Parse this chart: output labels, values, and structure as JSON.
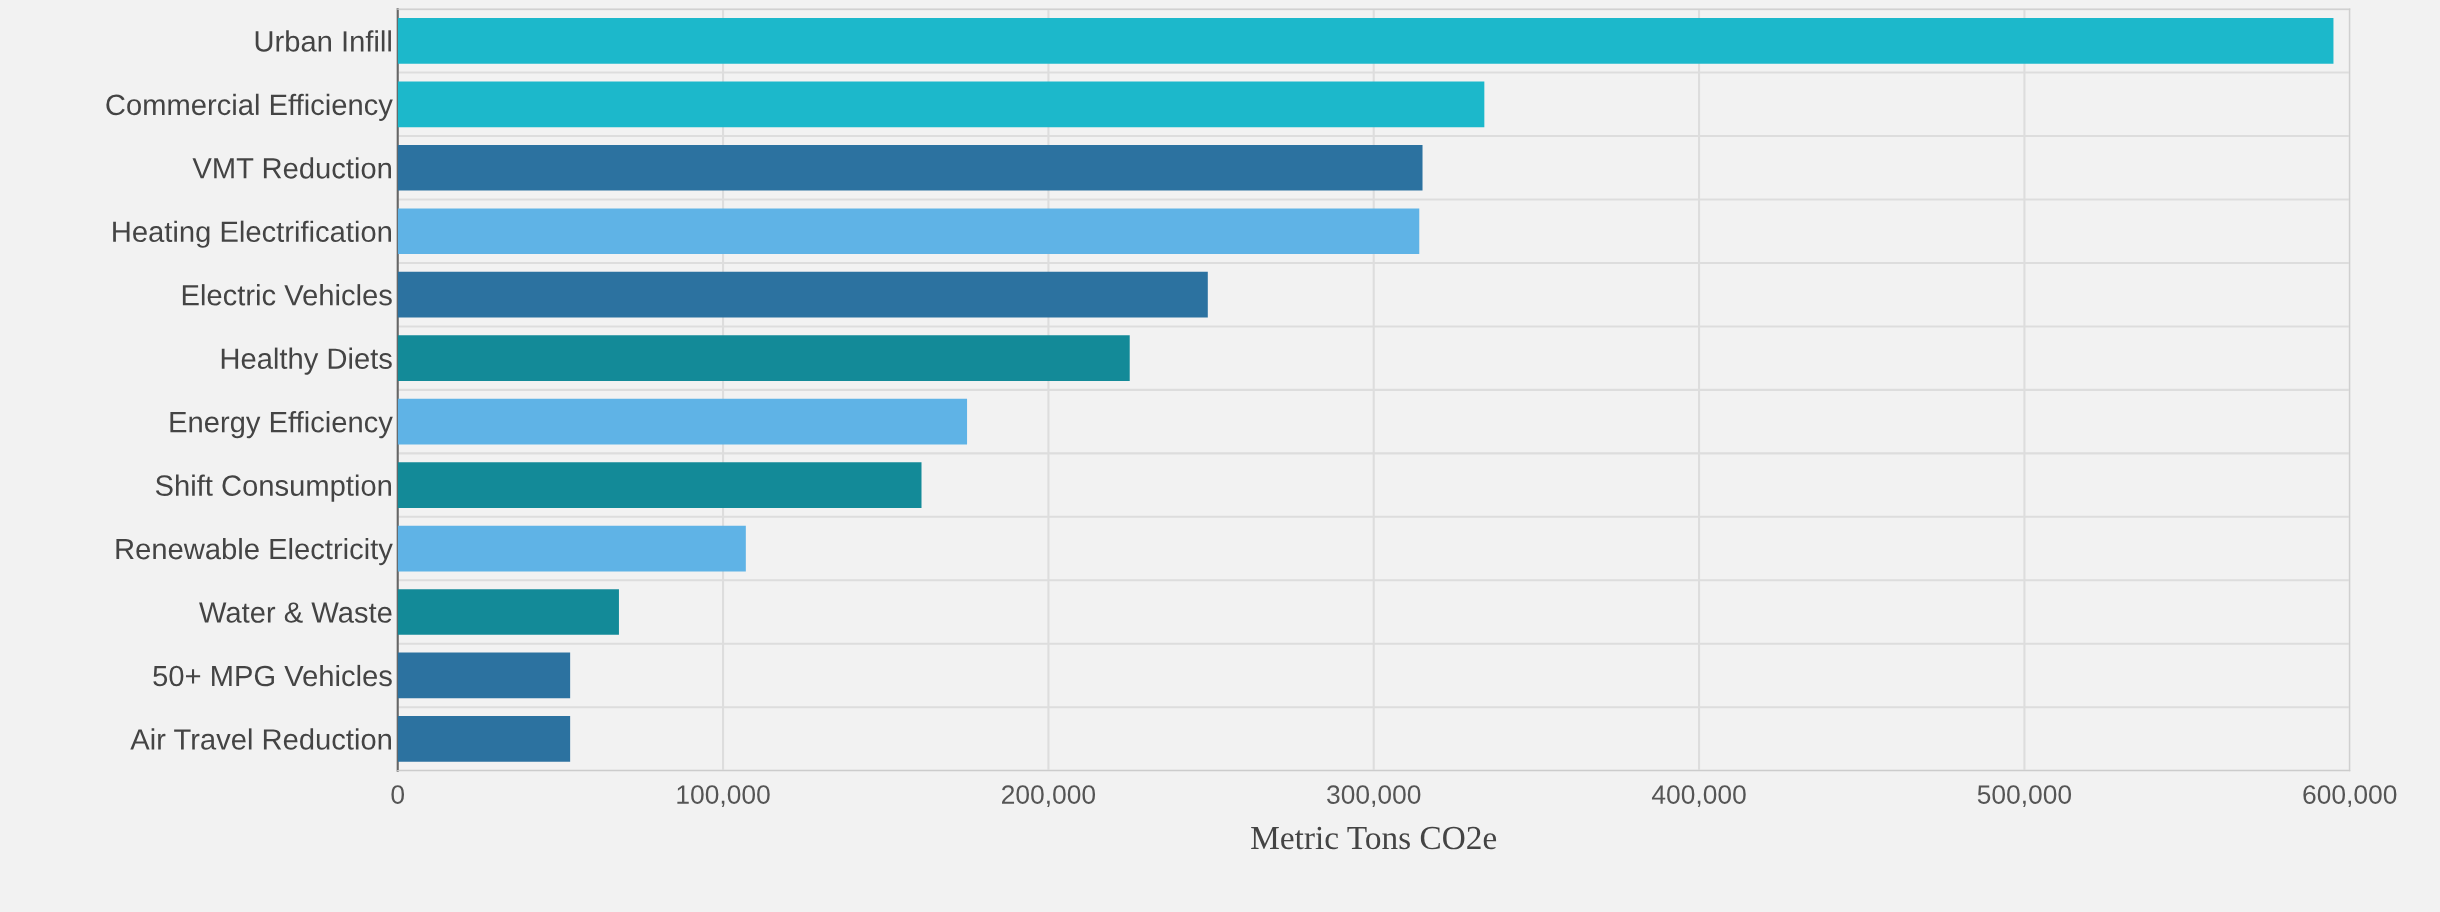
{
  "chart_data": {
    "type": "bar",
    "orientation": "horizontal",
    "xlabel": "Metric Tons CO2e",
    "categories": [
      "Urban Infill",
      "Commercial Efficiency",
      "VMT Reduction",
      "Heating Electrification",
      "Electric Vehicles",
      "Healthy Diets",
      "Energy Efficiency",
      "Shift Consumption",
      "Renewable Electricity",
      "Water & Waste",
      "50+ MPG Vehicles",
      "Air Travel Reduction"
    ],
    "values": [
      595000,
      334000,
      315000,
      314000,
      249000,
      225000,
      175000,
      161000,
      107000,
      68000,
      53000,
      53000
    ],
    "colors": [
      "#1cb8cb",
      "#1cb8cb",
      "#2c72a0",
      "#5fb3e6",
      "#2c72a0",
      "#138a98",
      "#5fb3e6",
      "#138a98",
      "#5fb3e6",
      "#138a98",
      "#2c72a0",
      "#2c72a0"
    ],
    "xlim": [
      0,
      600000
    ],
    "xticks": [
      0,
      {
        "value": 100000,
        "label": "100,000"
      },
      {
        "value": 200000,
        "label": "200,000"
      },
      {
        "value": 300000,
        "label": "300,000"
      },
      {
        "value": 400000,
        "label": "400,000"
      },
      {
        "value": 500000,
        "label": "500,000"
      },
      {
        "value": 600000,
        "label": "600,000"
      }
    ],
    "grid": true
  }
}
